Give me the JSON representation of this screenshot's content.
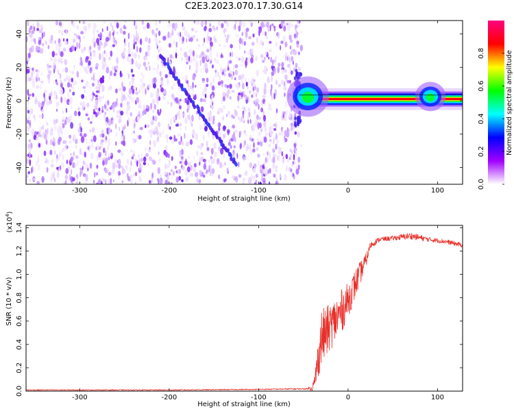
{
  "title": "C2E3.2023.070.17.30.G14",
  "chart_data": [
    {
      "type": "heatmap",
      "name": "spectrogram",
      "xlabel": "Height of straight line (km)",
      "ylabel": "Frequency (Hz)",
      "xlim": [
        -360,
        128
      ],
      "ylim": [
        -50,
        48
      ],
      "xticks": [
        -300,
        -200,
        -100,
        0,
        100
      ],
      "yticks": [
        -40,
        -20,
        0,
        20,
        40
      ],
      "noise_region_x": [
        -360,
        -55
      ],
      "doppler_streak": {
        "from": {
          "x": -210,
          "y": 27
        },
        "to": {
          "x": -125,
          "y": -38
        }
      },
      "carrier_band": {
        "x": [
          -55,
          128
        ],
        "y_center": 1,
        "half_width": 2.5,
        "bump_at_x": -45
      }
    },
    {
      "type": "colorbar",
      "name": "amplitude-colorbar",
      "label": "Normalized spectral amplitude",
      "range": [
        0,
        1
      ],
      "ticks": [
        "0.0",
        "0.2",
        "0.4",
        "0.6",
        "0.8"
      ],
      "tick_values": [
        0,
        0.2,
        0.4,
        0.6,
        0.8
      ],
      "colors": [
        "#ffffff",
        "#a000ff",
        "#0000ff",
        "#00ffff",
        "#00ff00",
        "#ffff00",
        "#ff0000",
        "#ff0080"
      ]
    },
    {
      "type": "line",
      "name": "snr",
      "xlabel": "Height of straight line (km)",
      "ylabel": "SNR (10 * v/v)",
      "multiplier_label": "(x10",
      "multiplier_exp": "4",
      "multiplier_close": ")",
      "xlim": [
        -360,
        128
      ],
      "ylim": [
        0,
        1.42
      ],
      "xticks": [
        -300,
        -200,
        -100,
        0,
        100
      ],
      "yticks": [
        0.0,
        0.2,
        0.4,
        0.6,
        0.8,
        1.0,
        1.2,
        1.4
      ],
      "ytick_labels": [
        "0.0",
        "0.2",
        "0.4",
        "0.6",
        "0.8",
        "1.0",
        "1.2",
        "1.4"
      ],
      "color": "#e8302a",
      "series": [
        {
          "name": "SNR",
          "x": [
            -360,
            -300,
            -200,
            -100,
            -45,
            -38,
            -30,
            -20,
            -10,
            0,
            10,
            20,
            25,
            35,
            50,
            70,
            90,
            110,
            128
          ],
          "y": [
            0.01,
            0.01,
            0.01,
            0.015,
            0.02,
            0.05,
            0.45,
            0.55,
            0.65,
            0.78,
            0.95,
            1.12,
            1.25,
            1.3,
            1.31,
            1.33,
            1.3,
            1.28,
            1.25
          ],
          "noise": [
            0.004,
            0.004,
            0.004,
            0.004,
            0.006,
            0.06,
            0.25,
            0.2,
            0.2,
            0.15,
            0.12,
            0.06,
            0.03,
            0.02,
            0.02,
            0.03,
            0.02,
            0.02,
            0.02
          ]
        }
      ]
    }
  ]
}
